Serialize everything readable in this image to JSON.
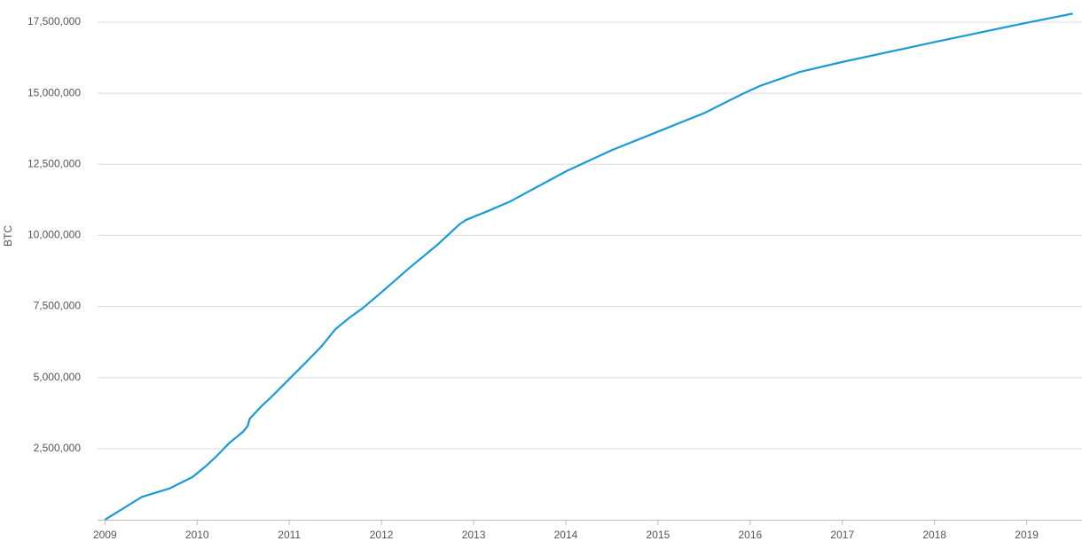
{
  "chart_data": {
    "type": "line",
    "y_label": "BTC",
    "x": [
      2009.0,
      2009.1,
      2009.4,
      2009.6,
      2009.7,
      2009.95,
      2010.1,
      2010.2,
      2010.35,
      2010.5,
      2010.55,
      2010.57,
      2010.7,
      2010.8,
      2011.0,
      2011.2,
      2011.35,
      2011.5,
      2011.65,
      2011.8,
      2012.0,
      2012.3,
      2012.6,
      2012.85,
      2012.92,
      2013.15,
      2013.4,
      2013.8,
      2014.0,
      2014.5,
      2015.0,
      2015.5,
      2015.9,
      2016.1,
      2016.54,
      2017.0,
      2018.0,
      2019.0,
      2019.5
    ],
    "series": [
      {
        "color": "#1a9ad6",
        "values": [
          0,
          200000,
          800000,
          1000000,
          1100000,
          1500000,
          1900000,
          2200000,
          2700000,
          3100000,
          3300000,
          3550000,
          4000000,
          4300000,
          4950000,
          5600000,
          6100000,
          6700000,
          7100000,
          7450000,
          8000000,
          8850000,
          9650000,
          10400000,
          10550000,
          10850000,
          11200000,
          11900000,
          12250000,
          13000000,
          13650000,
          14300000,
          14950000,
          15250000,
          15750000,
          16100000,
          16800000,
          17480000,
          17800000
        ]
      }
    ],
    "xlim": [
      2008.92,
      2019.6
    ],
    "xticks": [
      2009,
      2010,
      2011,
      2012,
      2013,
      2014,
      2015,
      2016,
      2017,
      2018,
      2019
    ],
    "ylim": [
      0,
      17500000
    ],
    "yticks": [
      {
        "value": 2500000,
        "label": "2,500,000"
      },
      {
        "value": 5000000,
        "label": "5,000,000"
      },
      {
        "value": 7500000,
        "label": "7,500,000"
      },
      {
        "value": 10000000,
        "label": "10,000,000"
      },
      {
        "value": 12500000,
        "label": "12,500,000"
      },
      {
        "value": 15000000,
        "label": "15,000,000"
      },
      {
        "value": 17500000,
        "label": "17,500,000"
      }
    ],
    "grid": true
  }
}
